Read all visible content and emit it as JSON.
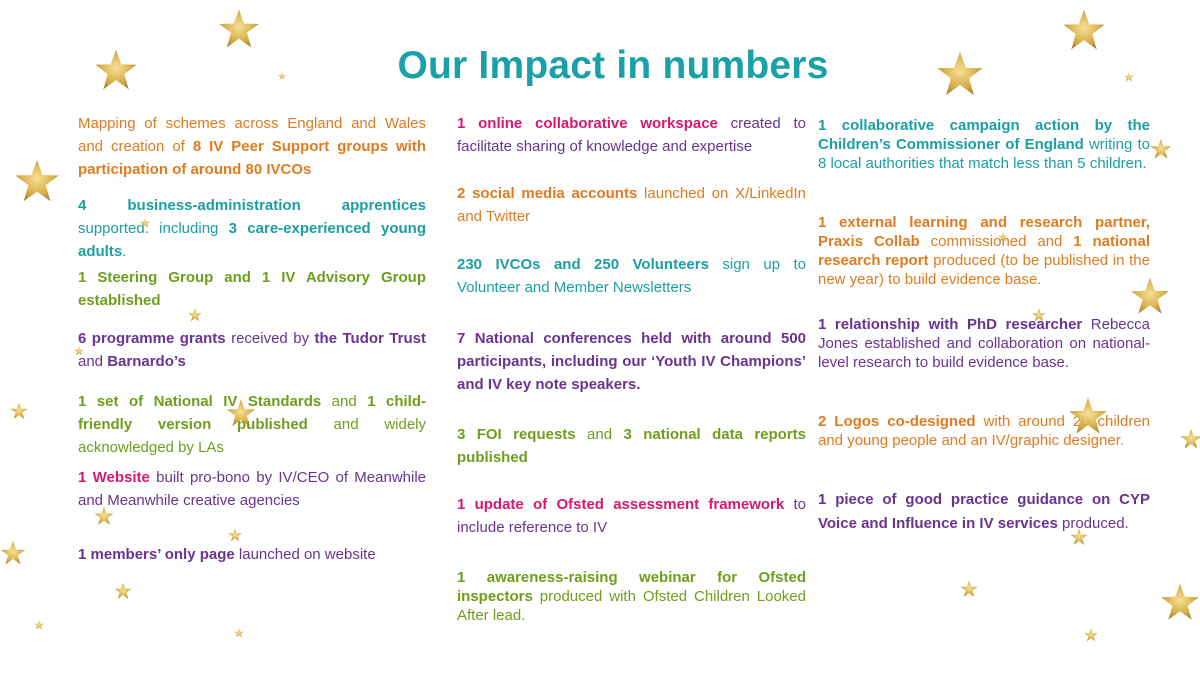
{
  "title": "Our Impact in numbers",
  "colors": {
    "title": "#1aa0a8",
    "orange": "#e07b1f",
    "teal": "#1a9fa3",
    "green": "#6e9e1c",
    "purple": "#6a3393",
    "pink": "#d8176e",
    "star_gold": "#d4a93a"
  },
  "decoration_icon": "glitter-star-icon",
  "col1": [
    {
      "s1": "Mapping of schemes across England and Wales and creation of ",
      "b1": "8 IV Peer Support groups with participation of around 80 IVCOs",
      "s2": "",
      "b2": "",
      "s3": ""
    },
    {
      "s1": "",
      "b1": "4 business-administration apprentices",
      "s2": " supported: including ",
      "b2": "3 care-experienced young adults",
      "s3": "."
    },
    {
      "s1": "",
      "b1": "1 Steering Group and 1 IV Advisory Group established",
      "s2": "",
      "b2": "",
      "s3": ""
    },
    {
      "s1": "",
      "b1": "6 programme grants",
      "s2": " received by ",
      "b2": "the Tudor Trust",
      "s3": " and ",
      "b3": "Barnardo’s"
    },
    {
      "s1": "",
      "b1": "1 set of National IV Standards",
      "s2": " and ",
      "b2": "1 child-friendly version published",
      "s3": " and widely acknowledged by LAs"
    },
    {
      "s1": "",
      "b1": "1 Website",
      "s2": " built pro-bono by IV/CEO of Meanwhile and Meanwhile creative agencies",
      "b2": "",
      "s3": ""
    },
    {
      "s1": "",
      "b1": "1 members’ only page",
      "s2": " launched on website",
      "b2": "",
      "s3": ""
    }
  ],
  "col2": [
    {
      "s1": "",
      "b1": "1 online collaborative workspace",
      "s2": " created to facilitate sharing of knowledge and expertise",
      "b2": "",
      "s3": ""
    },
    {
      "s1": "",
      "b1": "2 social media accounts",
      "s2": " launched on X/LinkedIn and Twitter",
      "b2": "",
      "s3": ""
    },
    {
      "s1": "",
      "b1": "230 IVCOs and 250 Volunteers",
      "s2": " sign up to Volunteer and Member Newsletters",
      "b2": "",
      "s3": ""
    },
    {
      "s1": "",
      "b1": "7 National conferences held with around 500 participants, including our ‘Youth IV Champions’ and IV key note speakers.",
      "s2": "",
      "b2": "",
      "s3": ""
    },
    {
      "s1": "",
      "b1": "3 FOI requests",
      "s2": " and ",
      "b2": "3 national data reports published",
      "s3": ""
    },
    {
      "s1": "",
      "b1": "1 update of Ofsted assessment framework",
      "s2": " to include reference to IV",
      "b2": "",
      "s3": ""
    },
    {
      "s1": "",
      "b1": "1 awareness-raising webinar for Ofsted inspectors",
      "s2": " produced with Ofsted Children Looked After lead.",
      "b2": "",
      "s3": ""
    }
  ],
  "col3": [
    {
      "s1": "",
      "b1": "1 collaborative campaign action by the Children’s Commissioner of England",
      "s2": " writing to 8 local authorities that match less than 5 children.",
      "b2": "",
      "s3": ""
    },
    {
      "s1": "",
      "b1": "1 external learning and research partner, Praxis Collab",
      "s2": " commissioned and ",
      "b2": "1 national research report",
      "s3": " produced (to be published in the new year) to build evidence base."
    },
    {
      "s1": "",
      "b1": "1 relationship with PhD researcher",
      "s2": " Rebecca Jones established and collaboration on national-level research to build evidence base.",
      "b2": "",
      "s3": ""
    },
    {
      "s1": "",
      "b1": "2 Logos co-designed",
      "s2": " with around 20 children and young people and an IV/graphic designer.",
      "b2": "",
      "s3": ""
    },
    {
      "s1": "",
      "b1": "1 piece of good practice guidance on CYP Voice and Influence in IV services",
      "s2": " produced.",
      "b2": "",
      "s3": ""
    }
  ]
}
